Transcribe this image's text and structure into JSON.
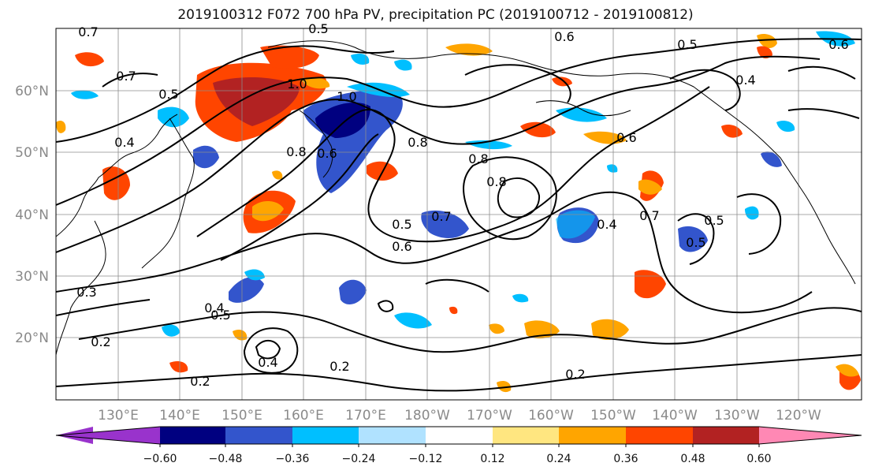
{
  "title": "2019100312 F072 700 hPa PV, precipitation PC (2019100712 - 2019100812)",
  "lon_ticks": [
    "130°E",
    "140°E",
    "150°E",
    "160°E",
    "170°E",
    "180°W",
    "170°W",
    "160°W",
    "150°W",
    "140°W",
    "130°W",
    "120°W"
  ],
  "lat_ticks": [
    "60°N",
    "50°N",
    "40°N",
    "30°N",
    "20°N"
  ],
  "colorbar": {
    "levels": [
      "−0.60",
      "−0.48",
      "−0.36",
      "−0.24",
      "−0.12",
      "0.12",
      "0.24",
      "0.36",
      "0.48",
      "0.60"
    ],
    "colors": [
      "#9933cc",
      "#000080",
      "#3355cc",
      "#00bfff",
      "#b0e2ff",
      "#ffffff",
      "#ffe680",
      "#ffa500",
      "#ff4500",
      "#b22222",
      "#ff88b4"
    ]
  },
  "contour_labels": [
    "0.7",
    "0.5",
    "0.6",
    "0.5",
    "0.4",
    "0.6",
    "0.7",
    "1.0",
    "1.0",
    "0.5",
    "0.8",
    "0.6",
    "0.4",
    "0.8",
    "0.8",
    "0.5",
    "0.6",
    "0.7",
    "0.8",
    "0.4",
    "0.6",
    "0.7",
    "0.5",
    "0.5",
    "0.4",
    "0.3",
    "0.5",
    "0.4",
    "0.2",
    "0.2",
    "0.2",
    "0.2"
  ]
}
